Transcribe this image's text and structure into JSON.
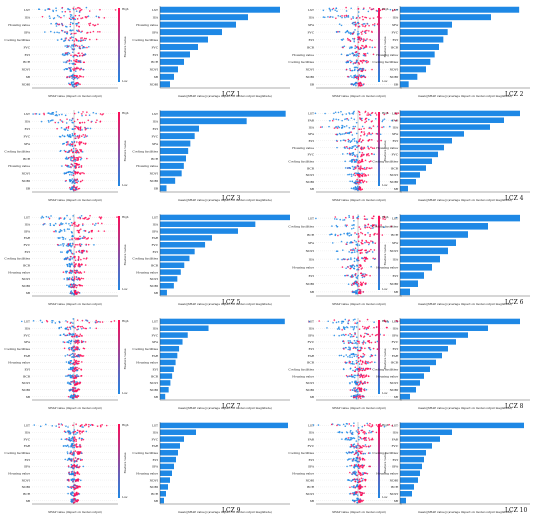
{
  "labels": {
    "feature_value": "Feature value",
    "high": "High",
    "low": "Low",
    "shap_xlabel": "SHAP value (impact on model output)",
    "bar_xlabel": "mean(|SHAP value|) (average impact on model output magnitude)"
  },
  "colors": {
    "low": "#1e88e5",
    "high": "#ff0d57",
    "bar": "#1e88e5",
    "text": "#111111"
  },
  "chart_data": [
    {
      "id": "LCZ 1",
      "type": "bar",
      "features": [
        "LST",
        "ISA",
        "Housing value",
        "SFA",
        "Cooling facilities",
        "FVC",
        "EVI",
        "BCR",
        "NDVI",
        "SB",
        "NDBI"
      ],
      "values": [
        0.06,
        0.044,
        0.038,
        0.031,
        0.024,
        0.019,
        0.015,
        0.012,
        0.009,
        0.007,
        0.005
      ],
      "xlim": [
        0,
        0.065
      ]
    },
    {
      "id": "LCZ 2",
      "type": "bar",
      "features": [
        "LST",
        "ISA",
        "SFA",
        "FVC",
        "EVI",
        "BCR",
        "Housing value",
        "Cooling facilities",
        "NDVI",
        "NDBI",
        "SB"
      ],
      "values": [
        0.055,
        0.042,
        0.024,
        0.022,
        0.02,
        0.018,
        0.016,
        0.014,
        0.012,
        0.008,
        0.004
      ],
      "xlim": [
        0,
        0.06
      ]
    },
    {
      "id": "LCZ 3",
      "type": "bar",
      "features": [
        "LST",
        "ISA",
        "EVI",
        "FVC",
        "SFA",
        "Cooling facilities",
        "BCR",
        "Housing value",
        "NDVI",
        "NDBI",
        "SB"
      ],
      "values": [
        0.058,
        0.04,
        0.018,
        0.016,
        0.014,
        0.013,
        0.012,
        0.011,
        0.01,
        0.007,
        0.003
      ],
      "xlim": [
        0,
        0.06
      ]
    },
    {
      "id": "LCZ 4",
      "type": "bar",
      "features": [
        "LST",
        "FAR",
        "ISA",
        "SFA",
        "EVI",
        "Housing value",
        "FVC",
        "Cooling facilities",
        "BCR",
        "NDVI",
        "NDBI",
        "SB"
      ],
      "values": [
        0.06,
        0.052,
        0.045,
        0.032,
        0.026,
        0.022,
        0.019,
        0.016,
        0.013,
        0.01,
        0.008,
        0.004
      ],
      "xlim": [
        0,
        0.065
      ]
    },
    {
      "id": "LCZ 5",
      "type": "bar",
      "features": [
        "LST",
        "ISA",
        "SFA",
        "FAR",
        "FVC",
        "EVI",
        "Cooling facilities",
        "BCR",
        "Housing value",
        "NDVI",
        "NDBI",
        "SB"
      ],
      "values": [
        0.075,
        0.055,
        0.045,
        0.03,
        0.026,
        0.02,
        0.017,
        0.014,
        0.012,
        0.01,
        0.008,
        0.004
      ],
      "xlim": [
        0,
        0.075
      ]
    },
    {
      "id": "LCZ 6",
      "type": "bar",
      "features": [
        "LST",
        "Cooling facilities",
        "BCR",
        "SFA",
        "NDVI",
        "ISA",
        "Housing value",
        "EVI",
        "NDBI",
        "SB"
      ],
      "values": [
        0.06,
        0.044,
        0.034,
        0.028,
        0.024,
        0.02,
        0.016,
        0.012,
        0.009,
        0.005
      ],
      "xlim": [
        0,
        0.065
      ]
    },
    {
      "id": "LCZ 7",
      "type": "bar",
      "features": [
        "LST",
        "ISA",
        "FVC",
        "SFA",
        "Cooling facilities",
        "FAR",
        "Housing value",
        "EVI",
        "BCR",
        "NDVI",
        "NDBI",
        "SB"
      ],
      "values": [
        0.072,
        0.028,
        0.016,
        0.013,
        0.011,
        0.01,
        0.009,
        0.008,
        0.007,
        0.006,
        0.005,
        0.003
      ],
      "xlim": [
        0,
        0.075
      ]
    },
    {
      "id": "LCZ 8",
      "type": "bar",
      "features": [
        "LST",
        "ISA",
        "SFA",
        "FVC",
        "EVI",
        "FAR",
        "BCR",
        "Cooling facilities",
        "Housing value",
        "NDVI",
        "NDBI",
        "SB"
      ],
      "values": [
        0.06,
        0.044,
        0.034,
        0.028,
        0.024,
        0.021,
        0.018,
        0.015,
        0.012,
        0.01,
        0.008,
        0.005
      ],
      "xlim": [
        0,
        0.065
      ]
    },
    {
      "id": "LCZ 9",
      "type": "bar",
      "features": [
        "LST",
        "ISA",
        "FVC",
        "FAR",
        "Cooling facilities",
        "EVI",
        "SFA",
        "Housing value",
        "NDVI",
        "NDBI",
        "BCR",
        "SB"
      ],
      "values": [
        0.064,
        0.018,
        0.012,
        0.01,
        0.009,
        0.008,
        0.007,
        0.006,
        0.005,
        0.004,
        0.003,
        0.002
      ],
      "xlim": [
        0,
        0.065
      ]
    },
    {
      "id": "LCZ 10",
      "type": "bar",
      "features": [
        "LST",
        "ISA",
        "FAR",
        "FVC",
        "Cooling facilities",
        "EVI",
        "SFA",
        "Housing value",
        "NDBI",
        "BCR",
        "NDVI",
        "SB"
      ],
      "values": [
        0.062,
        0.026,
        0.02,
        0.016,
        0.013,
        0.012,
        0.011,
        0.01,
        0.009,
        0.007,
        0.006,
        0.003
      ],
      "xlim": [
        0,
        0.065
      ]
    }
  ]
}
